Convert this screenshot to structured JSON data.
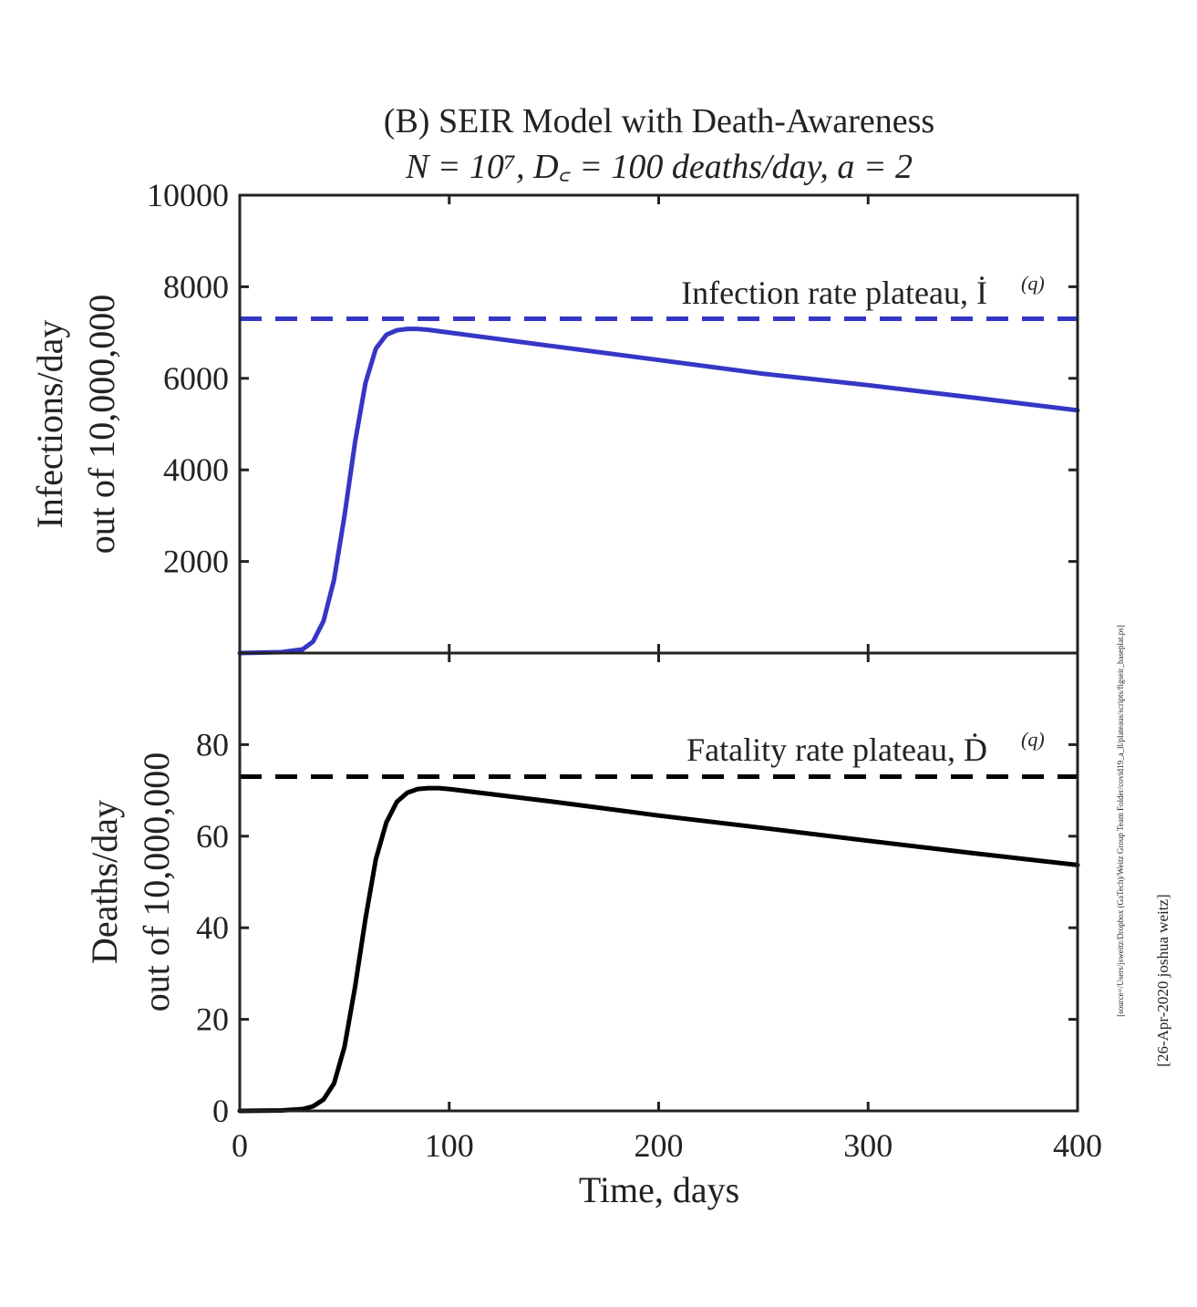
{
  "chart_data": [
    {
      "type": "line",
      "panel": "top",
      "title": "(B) SEIR Model with Death-Awareness",
      "subtitle": "N = 10⁷, D꜀ = 100 deaths/day, a = 2",
      "ylabel_lines": [
        "Infections/day",
        "out of 10,000,000"
      ],
      "xlim": [
        0,
        400
      ],
      "ylim": [
        0,
        10000
      ],
      "y_ticks": [
        2000,
        4000,
        6000,
        8000,
        10000
      ],
      "y_tick_labels": [
        "2000",
        "4000",
        "6000",
        "8000",
        "10000"
      ],
      "grid": false,
      "plateau": {
        "value": 7300,
        "label": "Infection rate plateau, İ",
        "label_sup": "(q)"
      },
      "series": [
        {
          "color": "#3636c6",
          "x": [
            0,
            20,
            30,
            35,
            40,
            45,
            50,
            55,
            60,
            65,
            70,
            75,
            80,
            85,
            90,
            100,
            150,
            200,
            250,
            300,
            350,
            400
          ],
          "y": [
            0,
            20,
            80,
            250,
            700,
            1600,
            3000,
            4600,
            5900,
            6650,
            6950,
            7050,
            7080,
            7080,
            7060,
            7000,
            6700,
            6400,
            6100,
            5850,
            5580,
            5300
          ]
        }
      ]
    },
    {
      "type": "line",
      "panel": "bottom",
      "ylabel_lines": [
        "Deaths/day",
        "out of 10,000,000"
      ],
      "xlabel": "Time, days",
      "xlim": [
        0,
        400
      ],
      "ylim": [
        0,
        100
      ],
      "x_ticks": [
        0,
        100,
        200,
        300,
        400
      ],
      "x_tick_labels": [
        "0",
        "100",
        "200",
        "300",
        "400"
      ],
      "y_ticks": [
        0,
        20,
        40,
        60,
        80
      ],
      "y_tick_labels": [
        "0",
        "20",
        "40",
        "60",
        "80"
      ],
      "grid": false,
      "plateau": {
        "value": 73,
        "label": "Fatality rate plateau, Ḋ",
        "label_sup": "(q)"
      },
      "series": [
        {
          "color": "#000000",
          "x": [
            0,
            20,
            30,
            35,
            40,
            45,
            50,
            55,
            60,
            65,
            70,
            75,
            80,
            85,
            90,
            95,
            100,
            150,
            200,
            250,
            300,
            350,
            400
          ],
          "y": [
            0,
            0.1,
            0.4,
            1,
            2.5,
            6,
            14,
            27,
            42,
            55,
            63,
            67.5,
            69.5,
            70.3,
            70.5,
            70.5,
            70.3,
            67.5,
            64.5,
            61.8,
            59,
            56.3,
            53.7
          ]
        }
      ]
    }
  ],
  "side_notes": {
    "source": "[source=/Users/jsweitz/Dropbox (GaTech)/Weitz Group Team Folder/covid19_a_ll/plateaus/scripts/figseir_baseplat.ps]",
    "stamp": "[26-Apr-2020 joshua weitz]"
  },
  "colors": {
    "infections": "#3636c6",
    "deaths": "#000000",
    "axes": "#222222"
  }
}
